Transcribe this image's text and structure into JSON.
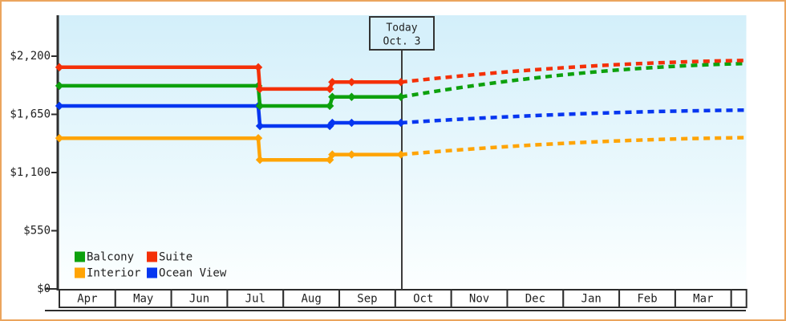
{
  "window": {
    "background": "#ffffff",
    "frame_border_color": "#eba55d"
  },
  "chart_data": {
    "type": "line",
    "title": "",
    "description_units": "x values are month offsets from axis start (0 = start of Apr, 12.26 = right edge); y values are USD prices",
    "y_axis": {
      "tick_labels": [
        "$2,200",
        "$1,650",
        "$1,100",
        "$550",
        "$0"
      ],
      "tick_values": [
        2200,
        1650,
        1100,
        550,
        0
      ],
      "ylim": [
        0,
        2580
      ],
      "grid": false
    },
    "x_axis": {
      "month_labels": [
        "Apr",
        "May",
        "Jun",
        "Jul",
        "Aug",
        "Sep",
        "Oct",
        "Nov",
        "Dec",
        "Jan",
        "Feb",
        "Mar"
      ],
      "extra_stub_cell": ""
    },
    "today": {
      "label_line1": "Today",
      "label_line2": "Oct. 3",
      "month_offset": 6.1,
      "box_fill": "#d6f0fb",
      "line_color": "#3c3c3c"
    },
    "plot_background_gradient": [
      "#d3effa",
      "#fcffff"
    ],
    "axis_color": "#2e2e2e",
    "series": [
      {
        "name": "Interior",
        "color": "#ffa405",
        "solid_points": [
          [
            0,
            1425
          ],
          [
            3.553,
            1425
          ],
          [
            3.582,
            1220
          ],
          [
            4.83,
            1220
          ],
          [
            4.875,
            1270
          ],
          [
            5.22,
            1270
          ],
          [
            6.1,
            1270
          ]
        ],
        "dashed_end": [
          12.26,
          1430
        ]
      },
      {
        "name": "Ocean View",
        "color": "#0636f0",
        "solid_points": [
          [
            0,
            1730
          ],
          [
            3.553,
            1730
          ],
          [
            3.582,
            1540
          ],
          [
            4.83,
            1540
          ],
          [
            4.875,
            1570
          ],
          [
            5.22,
            1570
          ],
          [
            6.1,
            1570
          ]
        ],
        "dashed_end": [
          12.26,
          1690
        ]
      },
      {
        "name": "Balcony",
        "color": "#0da10d",
        "solid_points": [
          [
            0,
            1920
          ],
          [
            3.553,
            1920
          ],
          [
            3.582,
            1730
          ],
          [
            4.83,
            1730
          ],
          [
            4.875,
            1815
          ],
          [
            5.22,
            1815
          ],
          [
            6.1,
            1815
          ]
        ],
        "dashed_end": [
          12.26,
          2130
        ]
      },
      {
        "name": "Suite",
        "color": "#f43008",
        "solid_points": [
          [
            0,
            2095
          ],
          [
            3.553,
            2095
          ],
          [
            3.582,
            1890
          ],
          [
            4.83,
            1890
          ],
          [
            4.875,
            1955
          ],
          [
            5.22,
            1955
          ],
          [
            6.1,
            1955
          ]
        ],
        "dashed_end": [
          12.26,
          2160
        ]
      }
    ]
  },
  "legend": {
    "items": [
      {
        "label": "Balcony",
        "color": "#0da10d"
      },
      {
        "label": "Suite",
        "color": "#f43008"
      },
      {
        "label": "Interior",
        "color": "#ffa405"
      },
      {
        "label": "Ocean View",
        "color": "#0636f0"
      }
    ]
  }
}
